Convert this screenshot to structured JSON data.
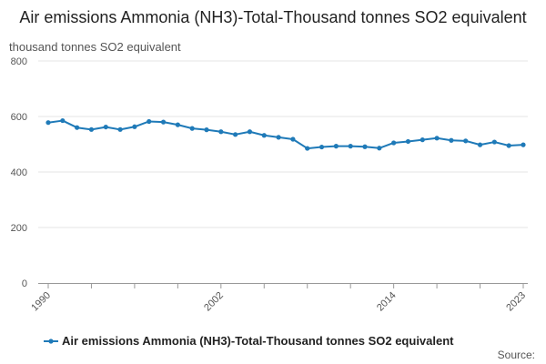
{
  "chart_data": {
    "type": "line",
    "title": "Air emissions Ammonia (NH3)-Total-Thousand tonnes SO2 equivalent",
    "unit_label": "thousand tonnes SO2 equivalent",
    "source_label": "Source:",
    "ylim": [
      0,
      800
    ],
    "y_ticks": [
      0,
      200,
      400,
      600,
      800
    ],
    "x_range": [
      1990,
      2023
    ],
    "x_tick_labels": [
      "1990",
      "2002",
      "2014",
      "2023"
    ],
    "grid": true,
    "legend_position": "bottom",
    "colors": {
      "series": "#1f7ab8",
      "grid": "#e6e6e6",
      "axis": "#999999"
    },
    "series": [
      {
        "name": "Air emissions Ammonia (NH3)-Total-Thousand tonnes SO2 equivalent",
        "x": [
          1990,
          1991,
          1992,
          1993,
          1994,
          1995,
          1996,
          1997,
          1998,
          1999,
          2000,
          2001,
          2002,
          2003,
          2004,
          2005,
          2006,
          2007,
          2008,
          2009,
          2010,
          2011,
          2012,
          2013,
          2014,
          2015,
          2016,
          2017,
          2018,
          2019,
          2020,
          2021,
          2022,
          2023
        ],
        "values": [
          578,
          585,
          560,
          553,
          562,
          553,
          563,
          582,
          580,
          570,
          557,
          552,
          545,
          535,
          545,
          532,
          525,
          518,
          485,
          490,
          493,
          493,
          491,
          486,
          505,
          510,
          516,
          522,
          514,
          512,
          498,
          508,
          495,
          498
        ]
      }
    ]
  }
}
